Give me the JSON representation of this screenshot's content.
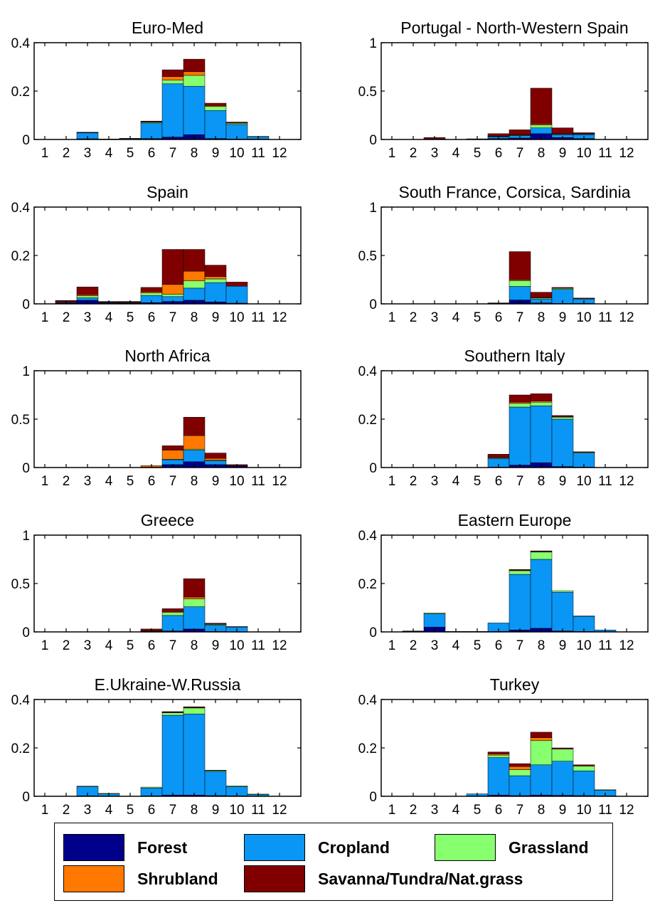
{
  "chart_data": [
    {
      "type": "bar",
      "title": "Euro-Med",
      "ylim": [
        0,
        0.4
      ],
      "yticks": [
        "0",
        "0.2",
        "0.4"
      ],
      "categories": [
        "1",
        "2",
        "3",
        "4",
        "5",
        "6",
        "7",
        "8",
        "9",
        "10",
        "11",
        "12"
      ],
      "series": [
        {
          "name": "Forest",
          "values": [
            0,
            0,
            0.003,
            0,
            0,
            0.004,
            0.01,
            0.02,
            0.004,
            0.002,
            0.002,
            0
          ]
        },
        {
          "name": "Cropland",
          "values": [
            0,
            0,
            0.024,
            0.002,
            0.004,
            0.064,
            0.22,
            0.2,
            0.116,
            0.06,
            0.01,
            0
          ]
        },
        {
          "name": "Grassland",
          "values": [
            0,
            0,
            0.002,
            0,
            0.001,
            0.004,
            0.015,
            0.045,
            0.016,
            0.005,
            0.001,
            0
          ]
        },
        {
          "name": "Shrubland",
          "values": [
            0,
            0,
            0,
            0,
            0,
            0.001,
            0.015,
            0.015,
            0.004,
            0.002,
            0,
            0
          ]
        },
        {
          "name": "Savanna/Tundra/Nat.grass",
          "values": [
            0,
            0,
            0.001,
            0,
            0,
            0.003,
            0.028,
            0.052,
            0.01,
            0.003,
            0,
            0
          ]
        }
      ]
    },
    {
      "type": "bar",
      "title": "Portugal - North-Western Spain",
      "ylim": [
        0,
        1
      ],
      "yticks": [
        "0",
        "0.5",
        "1"
      ],
      "categories": [
        "1",
        "2",
        "3",
        "4",
        "5",
        "6",
        "7",
        "8",
        "9",
        "10",
        "11",
        "12"
      ],
      "series": [
        {
          "name": "Forest",
          "values": [
            0,
            0,
            0,
            0,
            0.002,
            0.01,
            0.015,
            0.06,
            0.02,
            0.01,
            0,
            0
          ]
        },
        {
          "name": "Cropland",
          "values": [
            0,
            0,
            0.005,
            0,
            0.005,
            0.02,
            0.025,
            0.06,
            0.03,
            0.04,
            0,
            0
          ]
        },
        {
          "name": "Grassland",
          "values": [
            0,
            0,
            0,
            0,
            0,
            0.002,
            0.005,
            0.03,
            0.005,
            0.005,
            0,
            0
          ]
        },
        {
          "name": "Shrubland",
          "values": [
            0,
            0,
            0,
            0,
            0,
            0.003,
            0.005,
            0.01,
            0.005,
            0.005,
            0,
            0
          ]
        },
        {
          "name": "Savanna/Tundra/Nat.grass",
          "values": [
            0,
            0,
            0.015,
            0,
            0,
            0.025,
            0.05,
            0.37,
            0.06,
            0.01,
            0,
            0
          ]
        }
      ]
    },
    {
      "type": "bar",
      "title": "Spain",
      "ylim": [
        0,
        0.4
      ],
      "yticks": [
        "0",
        "0.2",
        "0.4"
      ],
      "categories": [
        "1",
        "2",
        "3",
        "4",
        "5",
        "6",
        "7",
        "8",
        "9",
        "10",
        "11",
        "12"
      ],
      "series": [
        {
          "name": "Forest",
          "values": [
            0,
            0.005,
            0.015,
            0.004,
            0.003,
            0.005,
            0.01,
            0.015,
            0.008,
            0.003,
            0,
            0
          ]
        },
        {
          "name": "Cropland",
          "values": [
            0,
            0.002,
            0.01,
            0.002,
            0.002,
            0.03,
            0.02,
            0.05,
            0.08,
            0.07,
            0,
            0
          ]
        },
        {
          "name": "Grassland",
          "values": [
            0,
            0,
            0.008,
            0,
            0,
            0.01,
            0.01,
            0.03,
            0.015,
            0,
            0,
            0
          ]
        },
        {
          "name": "Shrubland",
          "values": [
            0,
            0.003,
            0.005,
            0.002,
            0.002,
            0.005,
            0.04,
            0.04,
            0.01,
            0,
            0,
            0
          ]
        },
        {
          "name": "Savanna/Tundra/Nat.grass",
          "values": [
            0,
            0.004,
            0.032,
            0.002,
            0.003,
            0.018,
            0.145,
            0.09,
            0.047,
            0.017,
            0,
            0
          ]
        }
      ]
    },
    {
      "type": "bar",
      "title": "South France, Corsica, Sardinia",
      "ylim": [
        0,
        1
      ],
      "yticks": [
        "0",
        "0.5",
        "1"
      ],
      "categories": [
        "1",
        "2",
        "3",
        "4",
        "5",
        "6",
        "7",
        "8",
        "9",
        "10",
        "11",
        "12"
      ],
      "series": [
        {
          "name": "Forest",
          "values": [
            0,
            0,
            0,
            0,
            0,
            0,
            0.04,
            0.01,
            0.005,
            0.005,
            0,
            0
          ]
        },
        {
          "name": "Cropland",
          "values": [
            0,
            0,
            0,
            0,
            0,
            0.005,
            0.14,
            0.04,
            0.145,
            0.045,
            0,
            0
          ]
        },
        {
          "name": "Grassland",
          "values": [
            0,
            0,
            0,
            0,
            0,
            0,
            0.06,
            0.01,
            0.01,
            0.005,
            0,
            0
          ]
        },
        {
          "name": "Shrubland",
          "values": [
            0,
            0,
            0,
            0,
            0,
            0,
            0.01,
            0.005,
            0,
            0,
            0,
            0
          ]
        },
        {
          "name": "Savanna/Tundra/Nat.grass",
          "values": [
            0,
            0,
            0,
            0,
            0,
            0.005,
            0.29,
            0.055,
            0.01,
            0.005,
            0,
            0
          ]
        }
      ]
    },
    {
      "type": "bar",
      "title": "North Africa",
      "ylim": [
        0,
        1
      ],
      "yticks": [
        "0",
        "0.5",
        "1"
      ],
      "categories": [
        "1",
        "2",
        "3",
        "4",
        "5",
        "6",
        "7",
        "8",
        "9",
        "10",
        "11",
        "12"
      ],
      "series": [
        {
          "name": "Forest",
          "values": [
            0,
            0,
            0,
            0,
            0,
            0.002,
            0.03,
            0.06,
            0.03,
            0.015,
            0,
            0
          ]
        },
        {
          "name": "Cropland",
          "values": [
            0,
            0,
            0,
            0,
            0,
            0.003,
            0.05,
            0.12,
            0.04,
            0.005,
            0,
            0
          ]
        },
        {
          "name": "Grassland",
          "values": [
            0,
            0,
            0,
            0,
            0,
            0,
            0.005,
            0.01,
            0.005,
            0,
            0,
            0
          ]
        },
        {
          "name": "Shrubland",
          "values": [
            0,
            0,
            0,
            0,
            0,
            0.015,
            0.095,
            0.14,
            0.02,
            0,
            0,
            0
          ]
        },
        {
          "name": "Savanna/Tundra/Nat.grass",
          "values": [
            0,
            0,
            0,
            0,
            0,
            0,
            0.045,
            0.19,
            0.055,
            0.01,
            0,
            0
          ]
        }
      ]
    },
    {
      "type": "bar",
      "title": "Southern Italy",
      "ylim": [
        0,
        0.4
      ],
      "yticks": [
        "0",
        "0.2",
        "0.4"
      ],
      "categories": [
        "1",
        "2",
        "3",
        "4",
        "5",
        "6",
        "7",
        "8",
        "9",
        "10",
        "11",
        "12"
      ],
      "series": [
        {
          "name": "Forest",
          "values": [
            0,
            0,
            0,
            0,
            0,
            0.002,
            0.01,
            0.02,
            0.004,
            0.002,
            0,
            0
          ]
        },
        {
          "name": "Cropland",
          "values": [
            0,
            0,
            0,
            0,
            0,
            0.035,
            0.24,
            0.235,
            0.196,
            0.058,
            0,
            0
          ]
        },
        {
          "name": "Grassland",
          "values": [
            0,
            0,
            0,
            0,
            0,
            0.003,
            0.015,
            0.015,
            0.008,
            0.003,
            0,
            0
          ]
        },
        {
          "name": "Shrubland",
          "values": [
            0,
            0,
            0,
            0,
            0,
            0.002,
            0.005,
            0.005,
            0.002,
            0,
            0,
            0
          ]
        },
        {
          "name": "Savanna/Tundra/Nat.grass",
          "values": [
            0,
            0,
            0,
            0,
            0,
            0.013,
            0.03,
            0.03,
            0.005,
            0.002,
            0,
            0
          ]
        }
      ]
    },
    {
      "type": "bar",
      "title": "Greece",
      "ylim": [
        0,
        1
      ],
      "yticks": [
        "0",
        "0.5",
        "1"
      ],
      "categories": [
        "1",
        "2",
        "3",
        "4",
        "5",
        "6",
        "7",
        "8",
        "9",
        "10",
        "11",
        "12"
      ],
      "series": [
        {
          "name": "Forest",
          "values": [
            0,
            0,
            0,
            0,
            0,
            0.002,
            0.01,
            0.03,
            0.005,
            0.002,
            0,
            0
          ]
        },
        {
          "name": "Cropland",
          "values": [
            0,
            0,
            0,
            0,
            0,
            0.003,
            0.16,
            0.23,
            0.065,
            0.05,
            0,
            0
          ]
        },
        {
          "name": "Grassland",
          "values": [
            0,
            0,
            0,
            0,
            0,
            0.002,
            0.03,
            0.08,
            0.01,
            0.002,
            0,
            0
          ]
        },
        {
          "name": "Shrubland",
          "values": [
            0,
            0,
            0,
            0,
            0,
            0.005,
            0.01,
            0.02,
            0.002,
            0,
            0,
            0
          ]
        },
        {
          "name": "Savanna/Tundra/Nat.grass",
          "values": [
            0,
            0,
            0,
            0,
            0,
            0.018,
            0.03,
            0.19,
            0.008,
            0.001,
            0,
            0
          ]
        }
      ]
    },
    {
      "type": "bar",
      "title": "Eastern Europe",
      "ylim": [
        0,
        0.4
      ],
      "yticks": [
        "0",
        "0.2",
        "0.4"
      ],
      "categories": [
        "1",
        "2",
        "3",
        "4",
        "5",
        "6",
        "7",
        "8",
        "9",
        "10",
        "11",
        "12"
      ],
      "series": [
        {
          "name": "Forest",
          "values": [
            0,
            0.002,
            0.02,
            0.001,
            0.001,
            0.002,
            0.008,
            0.015,
            0.004,
            0.002,
            0.001,
            0
          ]
        },
        {
          "name": "Cropland",
          "values": [
            0,
            0.002,
            0.055,
            0.001,
            0.001,
            0.035,
            0.23,
            0.285,
            0.16,
            0.063,
            0.007,
            0
          ]
        },
        {
          "name": "Grassland",
          "values": [
            0,
            0,
            0.003,
            0,
            0,
            0,
            0.015,
            0.03,
            0.006,
            0.001,
            0,
            0
          ]
        },
        {
          "name": "Shrubland",
          "values": [
            0,
            0,
            0,
            0,
            0,
            0,
            0.002,
            0.002,
            0,
            0,
            0,
            0
          ]
        },
        {
          "name": "Savanna/Tundra/Nat.grass",
          "values": [
            0,
            0,
            0,
            0,
            0,
            0,
            0.003,
            0.003,
            0,
            0,
            0,
            0
          ]
        }
      ]
    },
    {
      "type": "bar",
      "title": "E.Ukraine-W.Russia",
      "ylim": [
        0,
        0.4
      ],
      "yticks": [
        "0",
        "0.2",
        "0.4"
      ],
      "categories": [
        "1",
        "2",
        "3",
        "4",
        "5",
        "6",
        "7",
        "8",
        "9",
        "10",
        "11",
        "12"
      ],
      "series": [
        {
          "name": "Forest",
          "values": [
            0,
            0,
            0.002,
            0.001,
            0,
            0.002,
            0.005,
            0.005,
            0.003,
            0.002,
            0,
            0
          ]
        },
        {
          "name": "Cropland",
          "values": [
            0,
            0,
            0.038,
            0.01,
            0,
            0.032,
            0.33,
            0.335,
            0.1,
            0.038,
            0.008,
            0
          ]
        },
        {
          "name": "Grassland",
          "values": [
            0,
            0,
            0.002,
            0.001,
            0,
            0.004,
            0.01,
            0.025,
            0.004,
            0.003,
            0.001,
            0
          ]
        },
        {
          "name": "Shrubland",
          "values": [
            0,
            0,
            0,
            0,
            0,
            0,
            0.002,
            0.002,
            0,
            0,
            0,
            0
          ]
        },
        {
          "name": "Savanna/Tundra/Nat.grass",
          "values": [
            0,
            0,
            0,
            0,
            0,
            0,
            0.003,
            0.003,
            0.001,
            0,
            0,
            0
          ]
        }
      ]
    },
    {
      "type": "bar",
      "title": "Turkey",
      "ylim": [
        0,
        0.4
      ],
      "yticks": [
        "0",
        "0.2",
        "0.4"
      ],
      "categories": [
        "1",
        "2",
        "3",
        "4",
        "5",
        "6",
        "7",
        "8",
        "9",
        "10",
        "11",
        "12"
      ],
      "series": [
        {
          "name": "Forest",
          "values": [
            0,
            0,
            0,
            0,
            0.001,
            0.005,
            0.003,
            0.005,
            0.004,
            0.003,
            0.002,
            0
          ]
        },
        {
          "name": "Cropland",
          "values": [
            0,
            0,
            0,
            0,
            0.009,
            0.155,
            0.082,
            0.125,
            0.141,
            0.102,
            0.023,
            0
          ]
        },
        {
          "name": "Grassland",
          "values": [
            0,
            0,
            0,
            0,
            0,
            0.01,
            0.025,
            0.1,
            0.05,
            0.02,
            0.002,
            0
          ]
        },
        {
          "name": "Shrubland",
          "values": [
            0,
            0,
            0,
            0,
            0,
            0.005,
            0.013,
            0.012,
            0,
            0,
            0,
            0
          ]
        },
        {
          "name": "Savanna/Tundra/Nat.grass",
          "values": [
            0,
            0,
            0,
            0,
            0,
            0.008,
            0.012,
            0.023,
            0.005,
            0.005,
            0,
            0
          ]
        }
      ]
    }
  ],
  "colors": {
    "Forest": "#00008b",
    "Cropland": "#0a96f5",
    "Grassland": "#87ff6e",
    "Shrubland": "#ff7800",
    "Savanna/Tundra/Nat.grass": "#800000"
  },
  "legend": {
    "items": [
      {
        "label": "Forest",
        "color": "#00008b"
      },
      {
        "label": "Cropland",
        "color": "#0a96f5"
      },
      {
        "label": "Grassland",
        "color": "#87ff6e"
      },
      {
        "label": "Shrubland",
        "color": "#ff7800"
      },
      {
        "label": "Savanna/Tundra/Nat.grass",
        "color": "#800000"
      }
    ]
  }
}
